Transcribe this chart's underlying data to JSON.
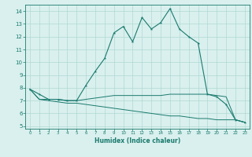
{
  "xlabel": "Humidex (Indice chaleur)",
  "x": [
    0,
    1,
    2,
    3,
    4,
    5,
    6,
    7,
    8,
    9,
    10,
    11,
    12,
    13,
    14,
    15,
    16,
    17,
    18,
    19,
    20,
    21,
    22,
    23
  ],
  "line1": [
    7.9,
    7.5,
    7.1,
    7.1,
    7.0,
    7.0,
    8.2,
    9.3,
    10.3,
    12.3,
    12.8,
    11.6,
    13.5,
    12.6,
    13.1,
    14.2,
    12.6,
    12.0,
    11.5,
    7.5,
    7.3,
    6.7,
    5.5,
    5.3
  ],
  "line2": [
    7.9,
    7.1,
    7.1,
    7.1,
    7.0,
    7.0,
    7.1,
    7.2,
    7.3,
    7.4,
    7.4,
    7.4,
    7.4,
    7.4,
    7.4,
    7.5,
    7.5,
    7.5,
    7.5,
    7.5,
    7.4,
    7.3,
    5.5,
    5.3
  ],
  "line3": [
    7.9,
    7.1,
    7.0,
    6.9,
    6.8,
    6.8,
    6.7,
    6.6,
    6.5,
    6.4,
    6.3,
    6.2,
    6.1,
    6.0,
    5.9,
    5.8,
    5.8,
    5.7,
    5.6,
    5.6,
    5.5,
    5.5,
    5.5,
    5.3
  ],
  "line_color": "#1a7a6e",
  "bg_color": "#d9f0ee",
  "grid_color": "#b0d8d4",
  "ylim": [
    4.8,
    14.5
  ],
  "xlim": [
    -0.5,
    23.5
  ],
  "yticks": [
    5,
    6,
    7,
    8,
    9,
    10,
    11,
    12,
    13,
    14
  ],
  "xticks": [
    0,
    1,
    2,
    3,
    4,
    5,
    6,
    7,
    8,
    9,
    10,
    11,
    12,
    13,
    14,
    15,
    16,
    17,
    18,
    19,
    20,
    21,
    22,
    23
  ]
}
